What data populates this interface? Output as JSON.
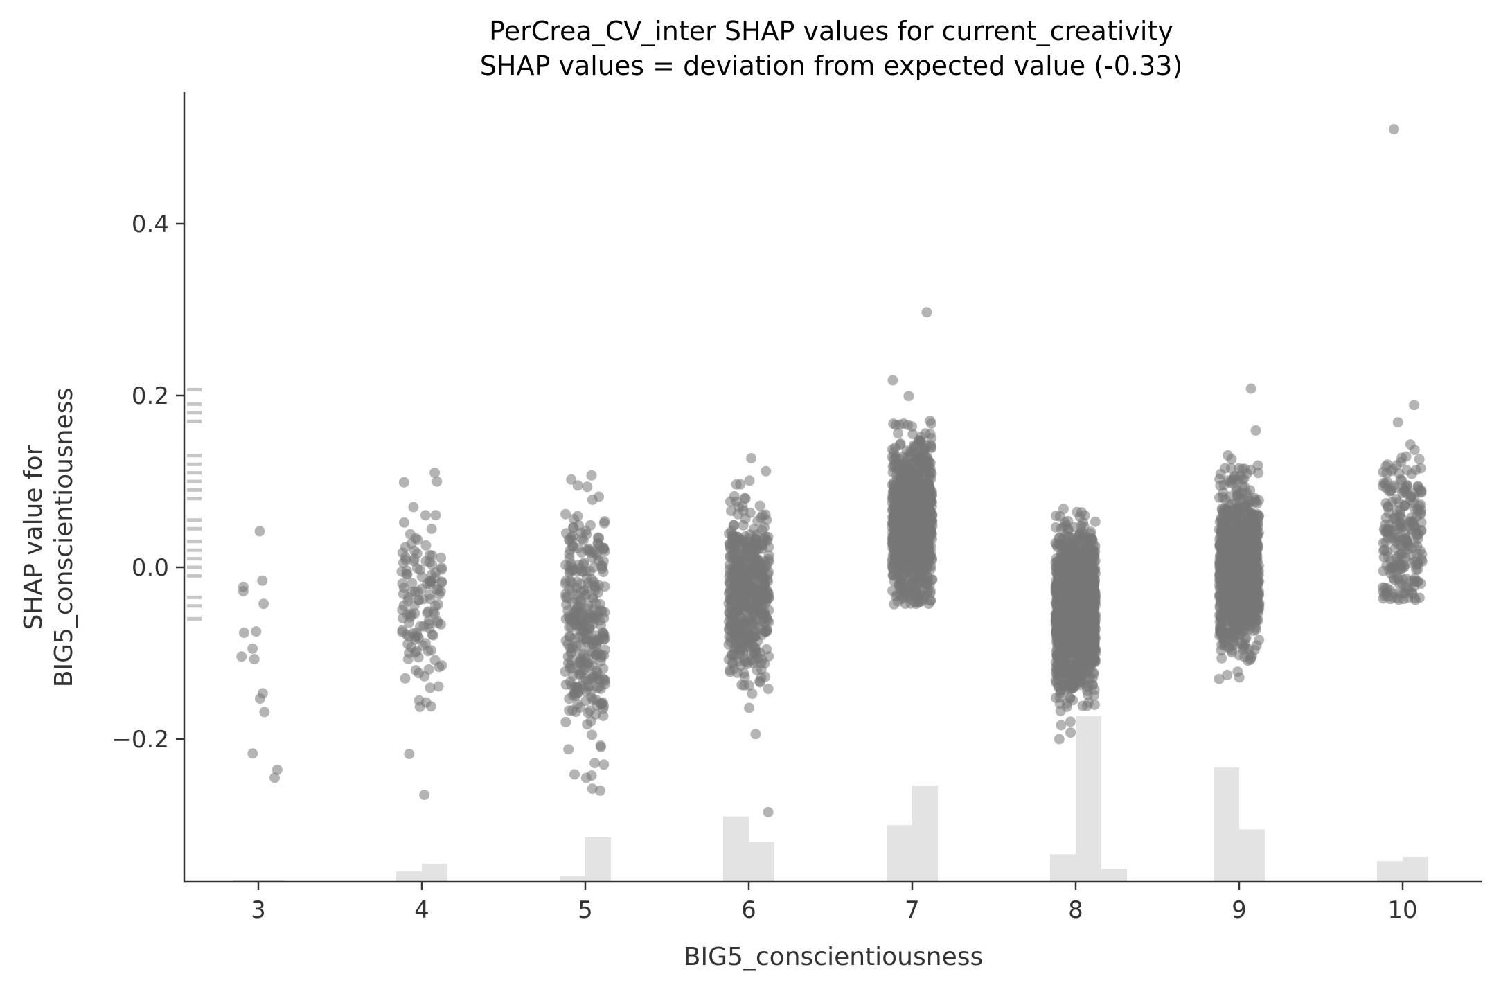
{
  "chart_data": {
    "type": "scatter",
    "title": "PerCrea_CV_inter SHAP values for current_creativity",
    "subtitle": "SHAP values = deviation from expected value (-0.33)",
    "xlabel": "BIG5_conscientiousness",
    "ylabel_lines": [
      "SHAP value for",
      "BIG5_conscientiousness"
    ],
    "x_ticks": [
      3,
      4,
      5,
      6,
      7,
      8,
      9,
      10
    ],
    "y_ticks": [
      -0.2,
      0.0,
      0.2,
      0.4
    ],
    "y_tick_labels": [
      "−0.2",
      "0.0",
      "0.2",
      "0.4"
    ],
    "xlim": [
      2.55,
      10.47
    ],
    "ylim": [
      -0.365,
      0.552
    ],
    "grid": false,
    "point_color": "#777777",
    "hist_color": "#e3e3e3",
    "groups": [
      {
        "x": 3,
        "count": 16,
        "center": -0.1,
        "spread": 0.07,
        "min": -0.245,
        "max": 0.042
      },
      {
        "x": 4,
        "count": 130,
        "center": -0.04,
        "spread": 0.055,
        "min": -0.265,
        "max": 0.11
      },
      {
        "x": 5,
        "count": 320,
        "center": -0.06,
        "spread": 0.07,
        "min": -0.26,
        "max": 0.107
      },
      {
        "x": 6,
        "count": 520,
        "center": -0.03,
        "spread": 0.05,
        "min": -0.285,
        "max": 0.127
      },
      {
        "x": 7,
        "count": 1100,
        "center": 0.05,
        "spread": 0.045,
        "min": -0.043,
        "max": 0.297
      },
      {
        "x": 8,
        "count": 1900,
        "center": -0.05,
        "spread": 0.04,
        "min": -0.2,
        "max": 0.068
      },
      {
        "x": 9,
        "count": 1100,
        "center": 0.0,
        "spread": 0.045,
        "min": -0.13,
        "max": 0.208
      },
      {
        "x": 10,
        "count": 230,
        "center": 0.04,
        "spread": 0.05,
        "min": -0.038,
        "max": 0.51
      }
    ],
    "histogram": [
      {
        "x": 3,
        "left": 0.002,
        "right": 0.002
      },
      {
        "x": 4,
        "left": 0.012,
        "right": 0.021
      },
      {
        "x": 5,
        "left": 0.007,
        "right": 0.052
      },
      {
        "x": 6,
        "left": 0.076,
        "right": 0.046
      },
      {
        "x": 7,
        "left": 0.066,
        "right": 0.112
      },
      {
        "x": 8,
        "left": 0.032,
        "right": 0.193
      },
      {
        "x": 9,
        "left": 0.133,
        "right": 0.061
      },
      {
        "x": 10,
        "left": 0.024,
        "right": 0.029
      }
    ],
    "histogram_next": [
      {
        "x": 8,
        "left": 0.0,
        "right": 0.015
      }
    ],
    "rug_values": [
      0.207,
      0.19,
      0.18,
      0.17,
      0.13,
      0.12,
      0.11,
      0.1,
      0.09,
      0.08,
      0.055,
      0.045,
      0.03,
      0.02,
      0.01,
      0.0,
      -0.01,
      -0.035,
      -0.045,
      -0.06
    ]
  }
}
